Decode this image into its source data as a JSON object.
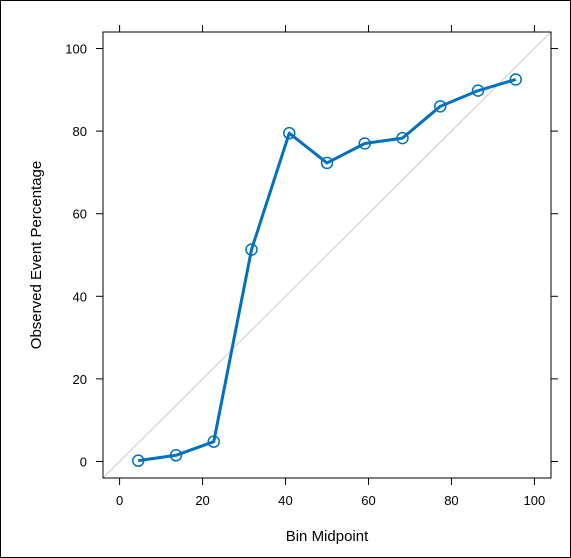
{
  "chart_data": {
    "type": "line",
    "xlabel": "Bin Midpoint",
    "ylabel": "Observed Event Percentage",
    "xlim": [
      -4,
      104
    ],
    "ylim": [
      -4,
      104
    ],
    "x_ticks": [
      0,
      20,
      40,
      60,
      80,
      100
    ],
    "y_ticks": [
      0,
      20,
      40,
      60,
      80,
      100
    ],
    "x_tick_labels": [
      "0",
      "20",
      "40",
      "60",
      "80",
      "100"
    ],
    "y_tick_labels": [
      "0",
      "20",
      "40",
      "60",
      "80",
      "100"
    ],
    "grid": false,
    "reference_line": {
      "from": [
        -4,
        -4
      ],
      "to": [
        104,
        104
      ]
    },
    "series": [
      {
        "x": [
          4.5,
          13.6,
          22.7,
          31.8,
          40.9,
          50.0,
          59.1,
          68.2,
          77.3,
          86.4,
          95.5
        ],
        "y": [
          0.2,
          1.5,
          4.8,
          51.3,
          79.5,
          72.3,
          77.0,
          78.3,
          86.0,
          89.8,
          92.5
        ]
      }
    ],
    "colors": {
      "line": "#0070C0",
      "marker": "#0070C0",
      "reference": "#cccccc"
    }
  }
}
